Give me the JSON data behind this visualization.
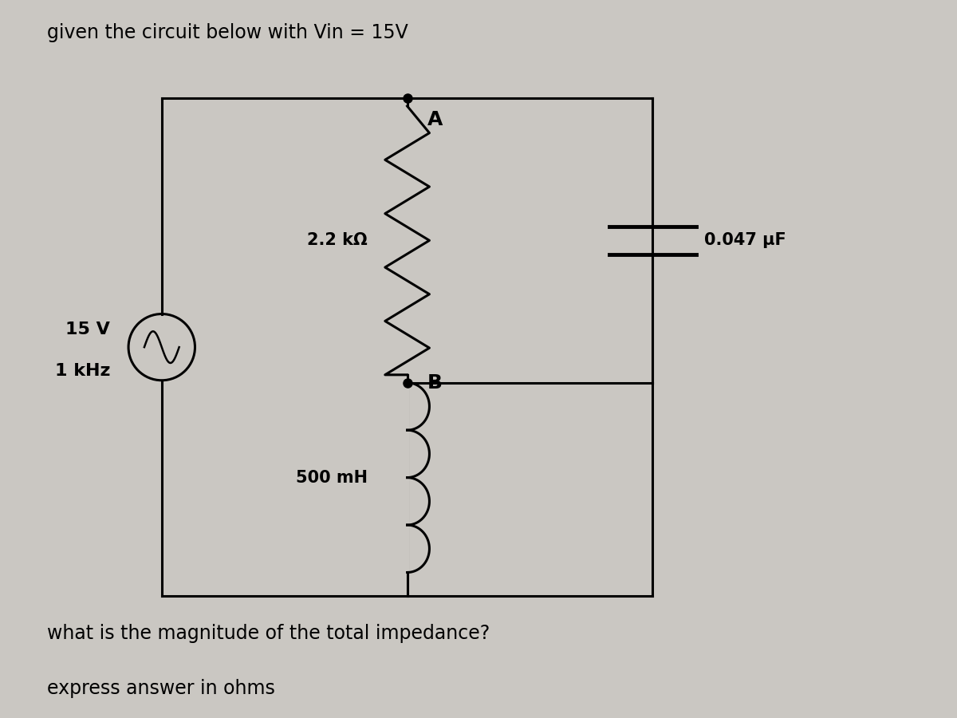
{
  "title": "given the circuit below with Vin = 15V",
  "question": "what is the magnitude of the total impedance?",
  "answer_hint": "express answer in ohms",
  "bg_color": "#cac7c2",
  "resistor_label": "2.2 kΩ",
  "inductor_label": "500 mH",
  "capacitor_label": "0.047 µF",
  "node_a_label": "A",
  "node_b_label": "B",
  "source_v": "15 V",
  "source_f": "1 kHz",
  "title_fontsize": 17,
  "label_fontsize": 15,
  "question_fontsize": 17
}
